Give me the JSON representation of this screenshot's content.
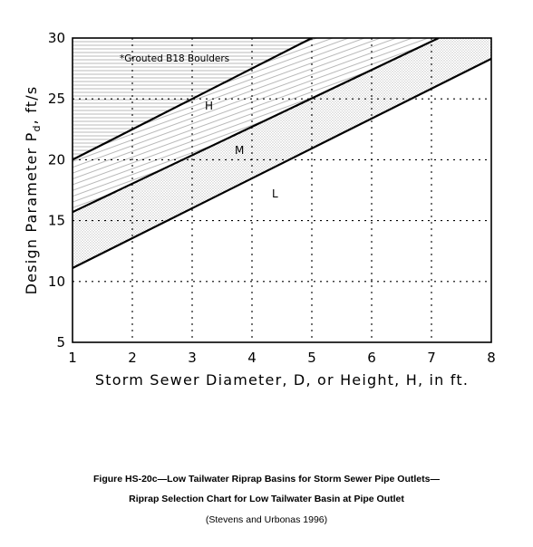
{
  "chart_data": {
    "type": "line",
    "xlabel": "Storm Sewer Diameter, D, or Height, H, in ft.",
    "ylabel": "Design Parameter P",
    "ylabel_sub": "d",
    "ylabel_unit": ", ft/s",
    "xlim": [
      1,
      8
    ],
    "ylim": [
      5,
      30
    ],
    "x_ticks": [
      1,
      2,
      3,
      4,
      5,
      6,
      7,
      8
    ],
    "y_ticks": [
      5,
      10,
      15,
      20,
      25,
      30
    ],
    "grid": true,
    "series": [
      {
        "name": "",
        "x": [
          1,
          5
        ],
        "y": [
          20,
          30
        ]
      },
      {
        "name": "",
        "x": [
          1,
          7.12
        ],
        "y": [
          15.7,
          30
        ]
      },
      {
        "name": "",
        "x": [
          1,
          8
        ],
        "y": [
          11.1,
          28.3
        ]
      }
    ],
    "regions": [
      {
        "label": "*Grouted B18 Boulders",
        "pattern": "horizontal-hatch"
      },
      {
        "label": "H",
        "pattern": "diagonal-hatch"
      },
      {
        "label": "M",
        "pattern": "stipple"
      },
      {
        "label": "L",
        "pattern": "none"
      }
    ]
  },
  "caption": {
    "line1": "Figure HS-20c—Low Tailwater Riprap Basins for Storm Sewer Pipe Outlets—",
    "line2": "Riprap Selection Chart for Low Tailwater Basin at Pipe Outlet",
    "line3": "(Stevens and Urbonas 1996)"
  }
}
